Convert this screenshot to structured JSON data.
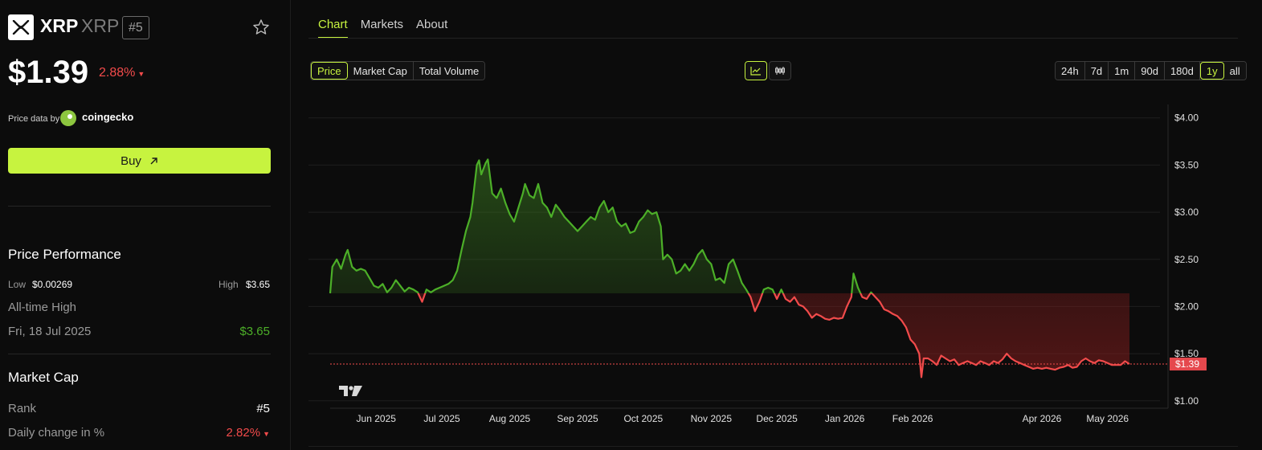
{
  "coin": {
    "name": "XRP",
    "ticker": "XRP",
    "rank": "#5",
    "price": "$1.39",
    "change": "2.88%",
    "change_color": "#f24b4b"
  },
  "price_data": {
    "label": "Price data by",
    "provider": "coingecko"
  },
  "buy_label": "Buy",
  "performance": {
    "title": "Price Performance",
    "low_label": "Low",
    "low_value": "$0.00269",
    "high_label": "High",
    "high_value": "$3.65",
    "ath_label": "All-time High",
    "ath_date": "Fri, 18 Jul 2025",
    "ath_value": "$3.65"
  },
  "market_cap": {
    "title": "Market Cap",
    "rank_label": "Rank",
    "rank_value": "#5",
    "daily_label": "Daily change in %",
    "daily_value": "2.82%"
  },
  "tabs": [
    {
      "label": "Chart",
      "active": true
    },
    {
      "label": "Markets",
      "active": false
    },
    {
      "label": "About",
      "active": false
    }
  ],
  "metric_buttons": [
    "Price",
    "Market Cap",
    "Total Volume"
  ],
  "metric_active": "Price",
  "range_buttons": [
    "24h",
    "7d",
    "1m",
    "90d",
    "180d",
    "1y",
    "all"
  ],
  "range_active": "1y",
  "colors": {
    "accent": "#c7f33f",
    "up": "#4caf28",
    "down": "#f24b4b"
  },
  "chart_data": {
    "type": "line",
    "y_ticks": [
      "$4.00",
      "$3.50",
      "$3.00",
      "$2.50",
      "$2.00",
      "$1.50",
      "$1.00"
    ],
    "ylim": [
      0.93,
      4.1
    ],
    "x_tick_labels": [
      "Jun 2025",
      "Jul 2025",
      "Aug 2025",
      "Sep 2025",
      "Oct 2025",
      "Nov 2025",
      "Dec 2025",
      "Jan 2026",
      "Feb 2026",
      "Apr 2026",
      "May 2026"
    ],
    "x_tick_dates": [
      "2025-06-01",
      "2025-07-01",
      "2025-08-01",
      "2025-09-01",
      "2025-10-01",
      "2025-11-01",
      "2025-12-01",
      "2026-01-01",
      "2026-02-01",
      "2026-04-01",
      "2026-05-01"
    ],
    "x_range": [
      "2025-05-11",
      "2026-05-11"
    ],
    "baseline": 2.14,
    "current_price_label": "$1.39",
    "current_price": 1.39,
    "grid": true,
    "series": [
      {
        "points": [
          [
            "2025-05-11",
            2.14
          ],
          [
            "2025-05-12",
            2.42
          ],
          [
            "2025-05-14",
            2.5
          ],
          [
            "2025-05-16",
            2.4
          ],
          [
            "2025-05-18",
            2.55
          ],
          [
            "2025-05-19",
            2.6
          ],
          [
            "2025-05-21",
            2.42
          ],
          [
            "2025-05-23",
            2.38
          ],
          [
            "2025-05-25",
            2.4
          ],
          [
            "2025-05-27",
            2.38
          ],
          [
            "2025-05-29",
            2.3
          ],
          [
            "2025-05-31",
            2.22
          ],
          [
            "2025-06-02",
            2.2
          ],
          [
            "2025-06-04",
            2.24
          ],
          [
            "2025-06-06",
            2.15
          ],
          [
            "2025-06-08",
            2.2
          ],
          [
            "2025-06-10",
            2.28
          ],
          [
            "2025-06-12",
            2.22
          ],
          [
            "2025-06-14",
            2.16
          ],
          [
            "2025-06-16",
            2.2
          ],
          [
            "2025-06-18",
            2.18
          ],
          [
            "2025-06-20",
            2.15
          ],
          [
            "2025-06-22",
            2.05
          ],
          [
            "2025-06-24",
            2.18
          ],
          [
            "2025-06-26",
            2.15
          ],
          [
            "2025-06-28",
            2.18
          ],
          [
            "2025-06-30",
            2.2
          ],
          [
            "2025-07-02",
            2.22
          ],
          [
            "2025-07-04",
            2.24
          ],
          [
            "2025-07-06",
            2.28
          ],
          [
            "2025-07-08",
            2.38
          ],
          [
            "2025-07-10",
            2.6
          ],
          [
            "2025-07-12",
            2.8
          ],
          [
            "2025-07-14",
            2.95
          ],
          [
            "2025-07-15",
            3.1
          ],
          [
            "2025-07-17",
            3.5
          ],
          [
            "2025-07-18",
            3.55
          ],
          [
            "2025-07-19",
            3.4
          ],
          [
            "2025-07-21",
            3.52
          ],
          [
            "2025-07-22",
            3.56
          ],
          [
            "2025-07-24",
            3.2
          ],
          [
            "2025-07-26",
            3.15
          ],
          [
            "2025-07-28",
            3.25
          ],
          [
            "2025-07-30",
            3.1
          ],
          [
            "2025-08-01",
            2.98
          ],
          [
            "2025-08-03",
            2.9
          ],
          [
            "2025-08-05",
            3.05
          ],
          [
            "2025-08-07",
            3.2
          ],
          [
            "2025-08-08",
            3.3
          ],
          [
            "2025-08-10",
            3.18
          ],
          [
            "2025-08-12",
            3.15
          ],
          [
            "2025-08-14",
            3.3
          ],
          [
            "2025-08-16",
            3.1
          ],
          [
            "2025-08-18",
            3.05
          ],
          [
            "2025-08-20",
            2.95
          ],
          [
            "2025-08-22",
            3.08
          ],
          [
            "2025-08-24",
            3.02
          ],
          [
            "2025-08-26",
            2.95
          ],
          [
            "2025-08-28",
            2.9
          ],
          [
            "2025-08-30",
            2.85
          ],
          [
            "2025-09-01",
            2.8
          ],
          [
            "2025-09-03",
            2.85
          ],
          [
            "2025-09-05",
            2.9
          ],
          [
            "2025-09-07",
            2.95
          ],
          [
            "2025-09-09",
            2.92
          ],
          [
            "2025-09-11",
            3.05
          ],
          [
            "2025-09-13",
            3.12
          ],
          [
            "2025-09-15",
            3.0
          ],
          [
            "2025-09-17",
            3.05
          ],
          [
            "2025-09-19",
            2.9
          ],
          [
            "2025-09-21",
            2.85
          ],
          [
            "2025-09-23",
            2.88
          ],
          [
            "2025-09-25",
            2.78
          ],
          [
            "2025-09-27",
            2.8
          ],
          [
            "2025-09-29",
            2.9
          ],
          [
            "2025-10-01",
            2.95
          ],
          [
            "2025-10-03",
            3.02
          ],
          [
            "2025-10-05",
            2.98
          ],
          [
            "2025-10-07",
            3.0
          ],
          [
            "2025-10-09",
            2.85
          ],
          [
            "2025-10-10",
            2.5
          ],
          [
            "2025-10-12",
            2.55
          ],
          [
            "2025-10-14",
            2.5
          ],
          [
            "2025-10-16",
            2.35
          ],
          [
            "2025-10-18",
            2.38
          ],
          [
            "2025-10-20",
            2.45
          ],
          [
            "2025-10-22",
            2.38
          ],
          [
            "2025-10-24",
            2.45
          ],
          [
            "2025-10-26",
            2.55
          ],
          [
            "2025-10-28",
            2.6
          ],
          [
            "2025-10-30",
            2.5
          ],
          [
            "2025-11-01",
            2.45
          ],
          [
            "2025-11-03",
            2.28
          ],
          [
            "2025-11-05",
            2.3
          ],
          [
            "2025-11-07",
            2.25
          ],
          [
            "2025-11-09",
            2.45
          ],
          [
            "2025-11-11",
            2.5
          ],
          [
            "2025-11-13",
            2.38
          ],
          [
            "2025-11-15",
            2.25
          ],
          [
            "2025-11-17",
            2.18
          ],
          [
            "2025-11-19",
            2.1
          ],
          [
            "2025-11-21",
            1.95
          ],
          [
            "2025-11-23",
            2.05
          ],
          [
            "2025-11-25",
            2.18
          ],
          [
            "2025-11-27",
            2.2
          ],
          [
            "2025-11-29",
            2.18
          ],
          [
            "2025-12-01",
            2.08
          ],
          [
            "2025-12-03",
            2.18
          ],
          [
            "2025-12-05",
            2.08
          ],
          [
            "2025-12-07",
            2.05
          ],
          [
            "2025-12-09",
            2.1
          ],
          [
            "2025-12-11",
            2.02
          ],
          [
            "2025-12-13",
            2.0
          ],
          [
            "2025-12-15",
            1.95
          ],
          [
            "2025-12-17",
            1.88
          ],
          [
            "2025-12-19",
            1.92
          ],
          [
            "2025-12-21",
            1.9
          ],
          [
            "2025-12-23",
            1.87
          ],
          [
            "2025-12-25",
            1.86
          ],
          [
            "2025-12-27",
            1.88
          ],
          [
            "2025-12-29",
            1.87
          ],
          [
            "2025-12-31",
            1.88
          ],
          [
            "2026-01-02",
            2.0
          ],
          [
            "2026-01-04",
            2.1
          ],
          [
            "2026-01-05",
            2.35
          ],
          [
            "2026-01-07",
            2.2
          ],
          [
            "2026-01-09",
            2.1
          ],
          [
            "2026-01-11",
            2.08
          ],
          [
            "2026-01-13",
            2.15
          ],
          [
            "2026-01-15",
            2.1
          ],
          [
            "2026-01-17",
            2.05
          ],
          [
            "2026-01-19",
            1.97
          ],
          [
            "2026-01-21",
            1.95
          ],
          [
            "2026-01-23",
            1.92
          ],
          [
            "2026-01-25",
            1.9
          ],
          [
            "2026-01-27",
            1.85
          ],
          [
            "2026-01-29",
            1.78
          ],
          [
            "2026-01-31",
            1.65
          ],
          [
            "2026-02-02",
            1.6
          ],
          [
            "2026-02-04",
            1.5
          ],
          [
            "2026-02-05",
            1.25
          ],
          [
            "2026-02-06",
            1.45
          ],
          [
            "2026-02-08",
            1.45
          ],
          [
            "2026-02-10",
            1.42
          ],
          [
            "2026-02-12",
            1.38
          ],
          [
            "2026-02-14",
            1.48
          ],
          [
            "2026-02-16",
            1.45
          ],
          [
            "2026-02-18",
            1.42
          ],
          [
            "2026-02-20",
            1.44
          ],
          [
            "2026-02-22",
            1.38
          ],
          [
            "2026-02-24",
            1.4
          ],
          [
            "2026-02-26",
            1.42
          ],
          [
            "2026-02-28",
            1.4
          ],
          [
            "2026-03-02",
            1.38
          ],
          [
            "2026-03-04",
            1.42
          ],
          [
            "2026-03-06",
            1.4
          ],
          [
            "2026-03-08",
            1.38
          ],
          [
            "2026-03-10",
            1.42
          ],
          [
            "2026-03-12",
            1.4
          ],
          [
            "2026-03-14",
            1.44
          ],
          [
            "2026-03-16",
            1.5
          ],
          [
            "2026-03-18",
            1.45
          ],
          [
            "2026-03-20",
            1.42
          ],
          [
            "2026-03-22",
            1.4
          ],
          [
            "2026-03-24",
            1.38
          ],
          [
            "2026-03-26",
            1.36
          ],
          [
            "2026-03-28",
            1.34
          ],
          [
            "2026-03-30",
            1.35
          ],
          [
            "2026-04-01",
            1.34
          ],
          [
            "2026-04-03",
            1.35
          ],
          [
            "2026-04-05",
            1.34
          ],
          [
            "2026-04-07",
            1.33
          ],
          [
            "2026-04-09",
            1.35
          ],
          [
            "2026-04-11",
            1.36
          ],
          [
            "2026-04-13",
            1.38
          ],
          [
            "2026-04-15",
            1.35
          ],
          [
            "2026-04-17",
            1.36
          ],
          [
            "2026-04-19",
            1.42
          ],
          [
            "2026-04-21",
            1.45
          ],
          [
            "2026-04-23",
            1.42
          ],
          [
            "2026-04-25",
            1.4
          ],
          [
            "2026-04-27",
            1.43
          ],
          [
            "2026-04-29",
            1.42
          ],
          [
            "2026-05-01",
            1.4
          ],
          [
            "2026-05-03",
            1.38
          ],
          [
            "2026-05-05",
            1.38
          ],
          [
            "2026-05-07",
            1.38
          ],
          [
            "2026-05-09",
            1.42
          ],
          [
            "2026-05-11",
            1.39
          ]
        ]
      }
    ]
  }
}
